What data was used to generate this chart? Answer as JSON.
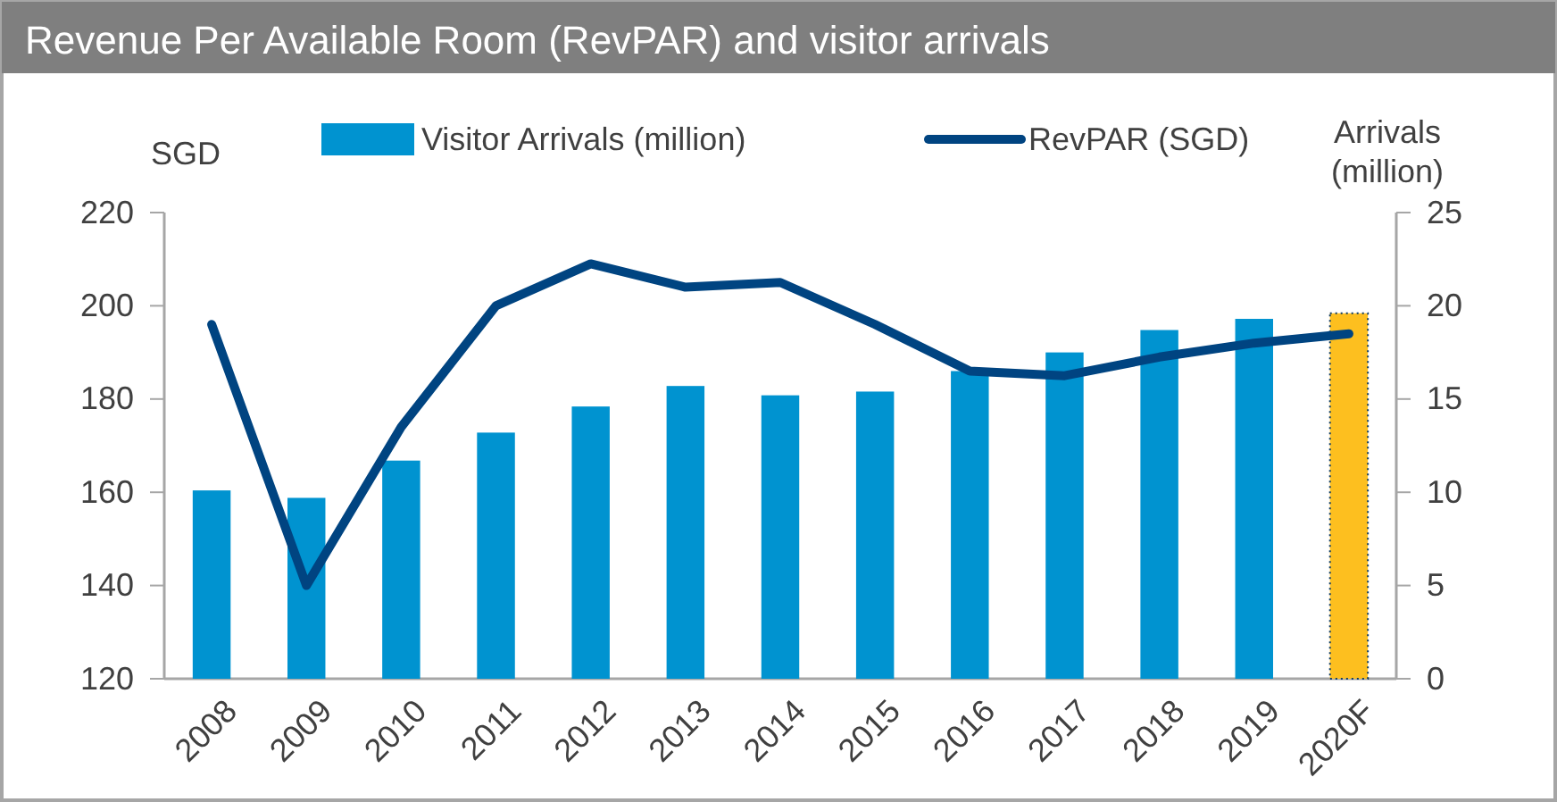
{
  "chart_data": {
    "type": "bar",
    "title": "Revenue Per Available Room (RevPAR) and visitor arrivals",
    "ylabel": "SGD",
    "y2label": "Arrivals (million)",
    "categories": [
      "2008",
      "2009",
      "2010",
      "2011",
      "2012",
      "2013",
      "2014",
      "2015",
      "2016",
      "2017",
      "2018",
      "2019",
      "2020F"
    ],
    "series": [
      {
        "name": "Visitor Arrivals (million)",
        "axis": "y2",
        "color": "#0093d0",
        "colors": [
          "#0093d0",
          "#0093d0",
          "#0093d0",
          "#0093d0",
          "#0093d0",
          "#0093d0",
          "#0093d0",
          "#0093d0",
          "#0093d0",
          "#0093d0",
          "#0093d0",
          "#0093d0",
          "#fdbf1f"
        ],
        "values": [
          10.1,
          9.7,
          11.7,
          13.2,
          14.6,
          15.7,
          15.2,
          15.4,
          16.5,
          17.5,
          18.7,
          19.3,
          19.6
        ]
      },
      {
        "name": "RevPAR (SGD)",
        "type": "line",
        "color": "#004481",
        "values": [
          196,
          140,
          174,
          200,
          209,
          204,
          205,
          196,
          186,
          185,
          189,
          192,
          194
        ]
      }
    ],
    "ylim": [
      120,
      220
    ],
    "yticks": [
      120,
      140,
      160,
      180,
      200,
      220
    ],
    "y2lim": [
      0,
      25
    ],
    "y2ticks": [
      0,
      5,
      10,
      15,
      20,
      25
    ],
    "grid": false,
    "legend": "top",
    "marker": "none",
    "line_style": "solid"
  }
}
